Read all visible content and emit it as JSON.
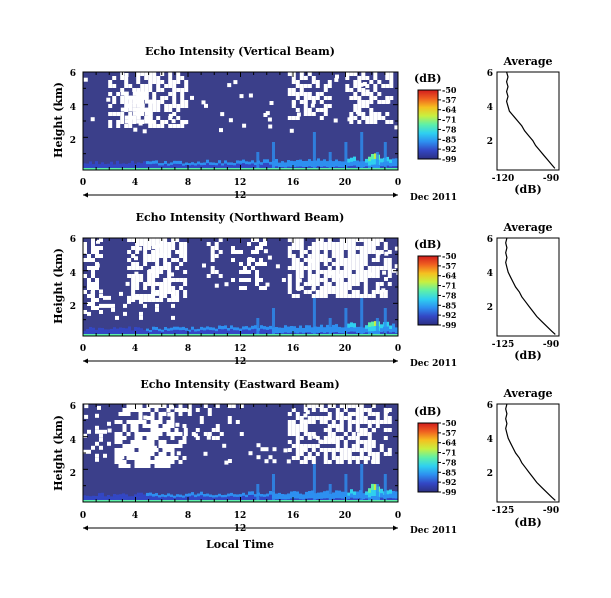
{
  "chart_data": [
    {
      "type": "heatmap",
      "title": "Echo Intensity (Vertical Beam)",
      "ylabel": "Height (km)",
      "x_ticks": [
        "0",
        "4",
        "8",
        "12",
        "16",
        "20",
        "0"
      ],
      "xlim": [
        0,
        24
      ],
      "y_ticks": [
        "2",
        "4",
        "6"
      ],
      "ylim": [
        0,
        6
      ],
      "date_marker": "12",
      "date_label": "Dec 2011",
      "colorbar": {
        "unit": "(dB)",
        "ticks": [
          "-50",
          "-57",
          "-64",
          "-71",
          "-78",
          "-85",
          "-92",
          "-99"
        ]
      },
      "profile": {
        "title": "Average",
        "xlabel": "(dB)",
        "x_ticks": [
          "-120",
          "-90"
        ],
        "xlim": [
          -130,
          -85
        ],
        "y_ticks": [
          "2",
          "4",
          "6"
        ],
        "ylim": [
          0,
          6
        ],
        "points": [
          [
            -88,
            0.1
          ],
          [
            -90,
            0.3
          ],
          [
            -93,
            0.6
          ],
          [
            -96,
            0.9
          ],
          [
            -99,
            1.2
          ],
          [
            -102,
            1.5
          ],
          [
            -104,
            1.8
          ],
          [
            -107,
            2.1
          ],
          [
            -110,
            2.4
          ],
          [
            -112,
            2.7
          ],
          [
            -115,
            3.0
          ],
          [
            -117,
            3.2
          ],
          [
            -119,
            3.4
          ],
          [
            -121,
            3.6
          ],
          [
            -122,
            3.9
          ],
          [
            -123,
            4.2
          ],
          [
            -122,
            4.5
          ],
          [
            -123,
            4.8
          ],
          [
            -122,
            5.1
          ],
          [
            -123,
            5.4
          ],
          [
            -122,
            5.7
          ],
          [
            -123,
            6.0
          ]
        ]
      }
    },
    {
      "type": "heatmap",
      "title": "Echo Intensity (Northward Beam)",
      "ylabel": "Height (km)",
      "x_ticks": [
        "0",
        "4",
        "8",
        "12",
        "16",
        "20",
        "0"
      ],
      "xlim": [
        0,
        24
      ],
      "y_ticks": [
        "2",
        "4",
        "6"
      ],
      "ylim": [
        0,
        6
      ],
      "date_marker": "12",
      "date_label": "Dec 2011",
      "colorbar": {
        "unit": "(dB)",
        "ticks": [
          "-50",
          "-57",
          "-64",
          "-71",
          "-78",
          "-85",
          "-92",
          "-99"
        ]
      },
      "profile": {
        "title": "Average",
        "xlabel": "(dB)",
        "x_ticks": [
          "-125",
          "-90"
        ],
        "xlim": [
          -135,
          -85
        ],
        "y_ticks": [
          "2",
          "4",
          "6"
        ],
        "ylim": [
          0,
          6
        ],
        "points": [
          [
            -88,
            0.1
          ],
          [
            -91,
            0.3
          ],
          [
            -95,
            0.6
          ],
          [
            -99,
            0.9
          ],
          [
            -103,
            1.2
          ],
          [
            -106,
            1.5
          ],
          [
            -109,
            1.8
          ],
          [
            -112,
            2.1
          ],
          [
            -115,
            2.4
          ],
          [
            -117,
            2.7
          ],
          [
            -120,
            3.0
          ],
          [
            -122,
            3.3
          ],
          [
            -124,
            3.6
          ],
          [
            -126,
            3.9
          ],
          [
            -127,
            4.2
          ],
          [
            -128,
            4.5
          ],
          [
            -127,
            4.8
          ],
          [
            -128,
            5.1
          ],
          [
            -127,
            5.4
          ],
          [
            -128,
            5.7
          ],
          [
            -127,
            6.0
          ]
        ]
      }
    },
    {
      "type": "heatmap",
      "title": "Echo Intensity (Eastward Beam)",
      "ylabel": "Height (km)",
      "xlabel": "Local Time",
      "x_ticks": [
        "0",
        "4",
        "8",
        "12",
        "16",
        "20",
        "0"
      ],
      "xlim": [
        0,
        24
      ],
      "y_ticks": [
        "2",
        "4",
        "6"
      ],
      "ylim": [
        0,
        6
      ],
      "date_marker": "12",
      "date_label": "Dec 2011",
      "colorbar": {
        "unit": "(dB)",
        "ticks": [
          "-50",
          "-57",
          "-64",
          "-71",
          "-78",
          "-85",
          "-92",
          "-99"
        ]
      },
      "profile": {
        "title": "Average",
        "xlabel": "(dB)",
        "x_ticks": [
          "-125",
          "-90"
        ],
        "xlim": [
          -135,
          -85
        ],
        "y_ticks": [
          "2",
          "4",
          "6"
        ],
        "ylim": [
          0,
          6
        ],
        "points": [
          [
            -88,
            0.1
          ],
          [
            -91,
            0.3
          ],
          [
            -95,
            0.6
          ],
          [
            -99,
            0.9
          ],
          [
            -103,
            1.2
          ],
          [
            -106,
            1.5
          ],
          [
            -109,
            1.8
          ],
          [
            -112,
            2.1
          ],
          [
            -115,
            2.4
          ],
          [
            -117,
            2.7
          ],
          [
            -120,
            3.0
          ],
          [
            -122,
            3.3
          ],
          [
            -124,
            3.6
          ],
          [
            -126,
            3.9
          ],
          [
            -127,
            4.2
          ],
          [
            -128,
            4.5
          ],
          [
            -127,
            4.8
          ],
          [
            -128,
            5.1
          ],
          [
            -127,
            5.4
          ],
          [
            -128,
            5.7
          ],
          [
            -127,
            6.0
          ]
        ]
      }
    }
  ],
  "colors": {
    "background_echo": "#3b3f8a",
    "noise_gap": "#ffffff",
    "colormap": [
      "#2c2f82",
      "#3347c4",
      "#2d8ff0",
      "#2fd0f0",
      "#5ef0a8",
      "#c8f040",
      "#f5c020",
      "#f06020",
      "#d21d1d"
    ]
  }
}
